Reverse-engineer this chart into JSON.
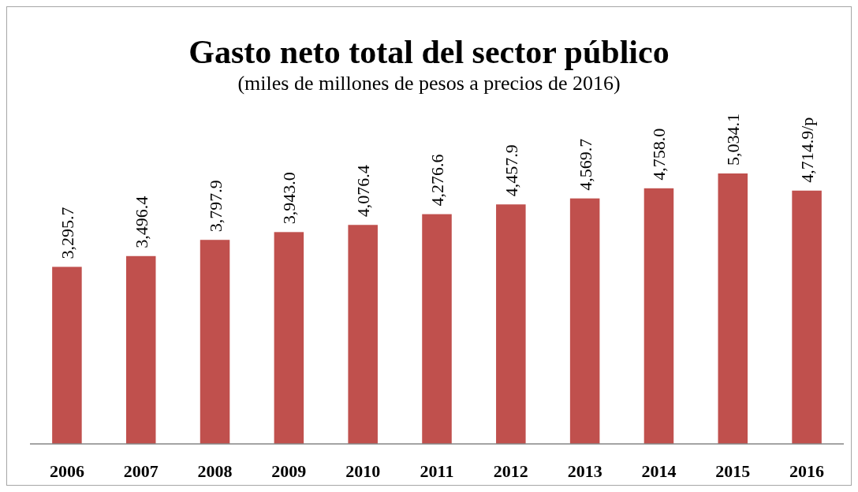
{
  "chart_data": {
    "type": "bar",
    "title": "Gasto neto total del sector público",
    "subtitle": "(miles de millones de pesos a precios de 2016)",
    "categories": [
      "2006",
      "2007",
      "2008",
      "2009",
      "2010",
      "2011",
      "2012",
      "2013",
      "2014",
      "2015",
      "2016"
    ],
    "values": [
      3295.7,
      3496.4,
      3797.9,
      3943.0,
      4076.4,
      4276.6,
      4457.9,
      4569.7,
      4758.0,
      5034.1,
      4714.9
    ],
    "value_labels": [
      "3,295.7",
      "3,496.4",
      "3,797.9",
      "3,943.0",
      "4,076.4",
      "4,276.6",
      "4,457.9",
      "4,569.7",
      "4,758.0",
      "5,034.1",
      "4,714.9/p"
    ],
    "color": "#c0504d",
    "tick_labels": "x"
  }
}
